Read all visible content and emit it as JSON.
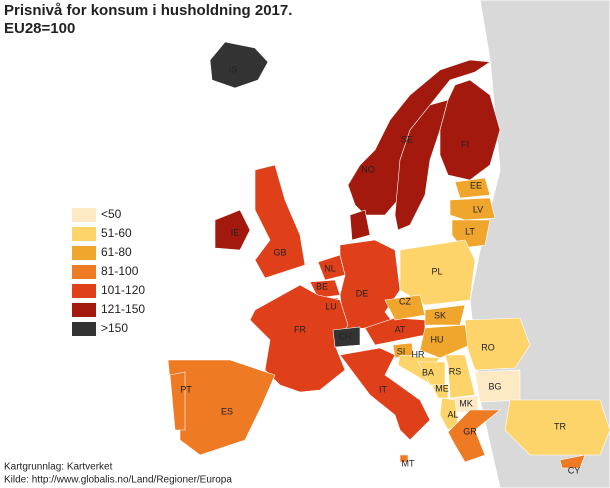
{
  "title": "Prisnivå for konsum i husholdning 2017.",
  "subtitle": "EU28=100",
  "legend": [
    {
      "label": "<50",
      "color": "#fde9c4"
    },
    {
      "label": "51-60",
      "color": "#fdd46a"
    },
    {
      "label": "61-80",
      "color": "#f0a52c"
    },
    {
      "label": "81-100",
      "color": "#ee7a23"
    },
    {
      "label": "101-120",
      "color": "#df401a"
    },
    {
      "label": "121-150",
      "color": "#a3190d"
    },
    {
      "label": ">150",
      "color": "#333333"
    }
  ],
  "countries": [
    {
      "code": "IS",
      "color": "#333333"
    },
    {
      "code": "NO",
      "color": "#a3190d"
    },
    {
      "code": "SE",
      "color": "#a3190d"
    },
    {
      "code": "FI",
      "color": "#a3190d"
    },
    {
      "code": "EE",
      "color": "#f0a52c"
    },
    {
      "code": "LV",
      "color": "#f0a52c"
    },
    {
      "code": "LT",
      "color": "#f0a52c"
    },
    {
      "code": null,
      "color": "#a3190d"
    },
    {
      "code": "IE",
      "color": "#a3190d"
    },
    {
      "code": "GB",
      "color": "#df401a"
    },
    {
      "code": "NL",
      "color": "#df401a"
    },
    {
      "code": "BE",
      "color": "#df401a"
    },
    {
      "code": "LU",
      "color": "#df401a"
    },
    {
      "code": "DE",
      "color": "#df401a"
    },
    {
      "code": "FR",
      "color": "#df401a"
    },
    {
      "code": "CH",
      "color": "#333333"
    },
    {
      "code": "AT",
      "color": "#df401a"
    },
    {
      "code": "PL",
      "color": "#fdd46a"
    },
    {
      "code": "CZ",
      "color": "#f0a52c"
    },
    {
      "code": "SK",
      "color": "#f0a52c"
    },
    {
      "code": "HU",
      "color": "#f0a52c"
    },
    {
      "code": "SI",
      "color": "#f0a52c"
    },
    {
      "code": "HR",
      "color": "#fdd46a"
    },
    {
      "code": "BA",
      "color": "#fdd46a"
    },
    {
      "code": "RS",
      "color": "#fdd46a"
    },
    {
      "code": "ME",
      "color": "#fdd46a"
    },
    {
      "code": "MK",
      "color": "#fde9c4"
    },
    {
      "code": "AL",
      "color": "#fdd46a"
    },
    {
      "code": "RO",
      "color": "#fdd46a"
    },
    {
      "code": "BG",
      "color": "#fde9c4"
    },
    {
      "code": "GR",
      "color": "#ee7a23"
    },
    {
      "code": "IT",
      "color": "#df401a"
    },
    {
      "code": "ES",
      "color": "#ee7a23"
    },
    {
      "code": "PT",
      "color": "#ee7a23"
    },
    {
      "code": "MT",
      "color": "#ee7a23"
    },
    {
      "code": "CY",
      "color": "#ee7a23"
    },
    {
      "code": "TR",
      "color": "#fdd46a"
    }
  ],
  "source": [
    "Kartgrunnlag: Kartverket",
    "Kilde: http://www.globalis.no/Land/Regioner/Europa"
  ]
}
